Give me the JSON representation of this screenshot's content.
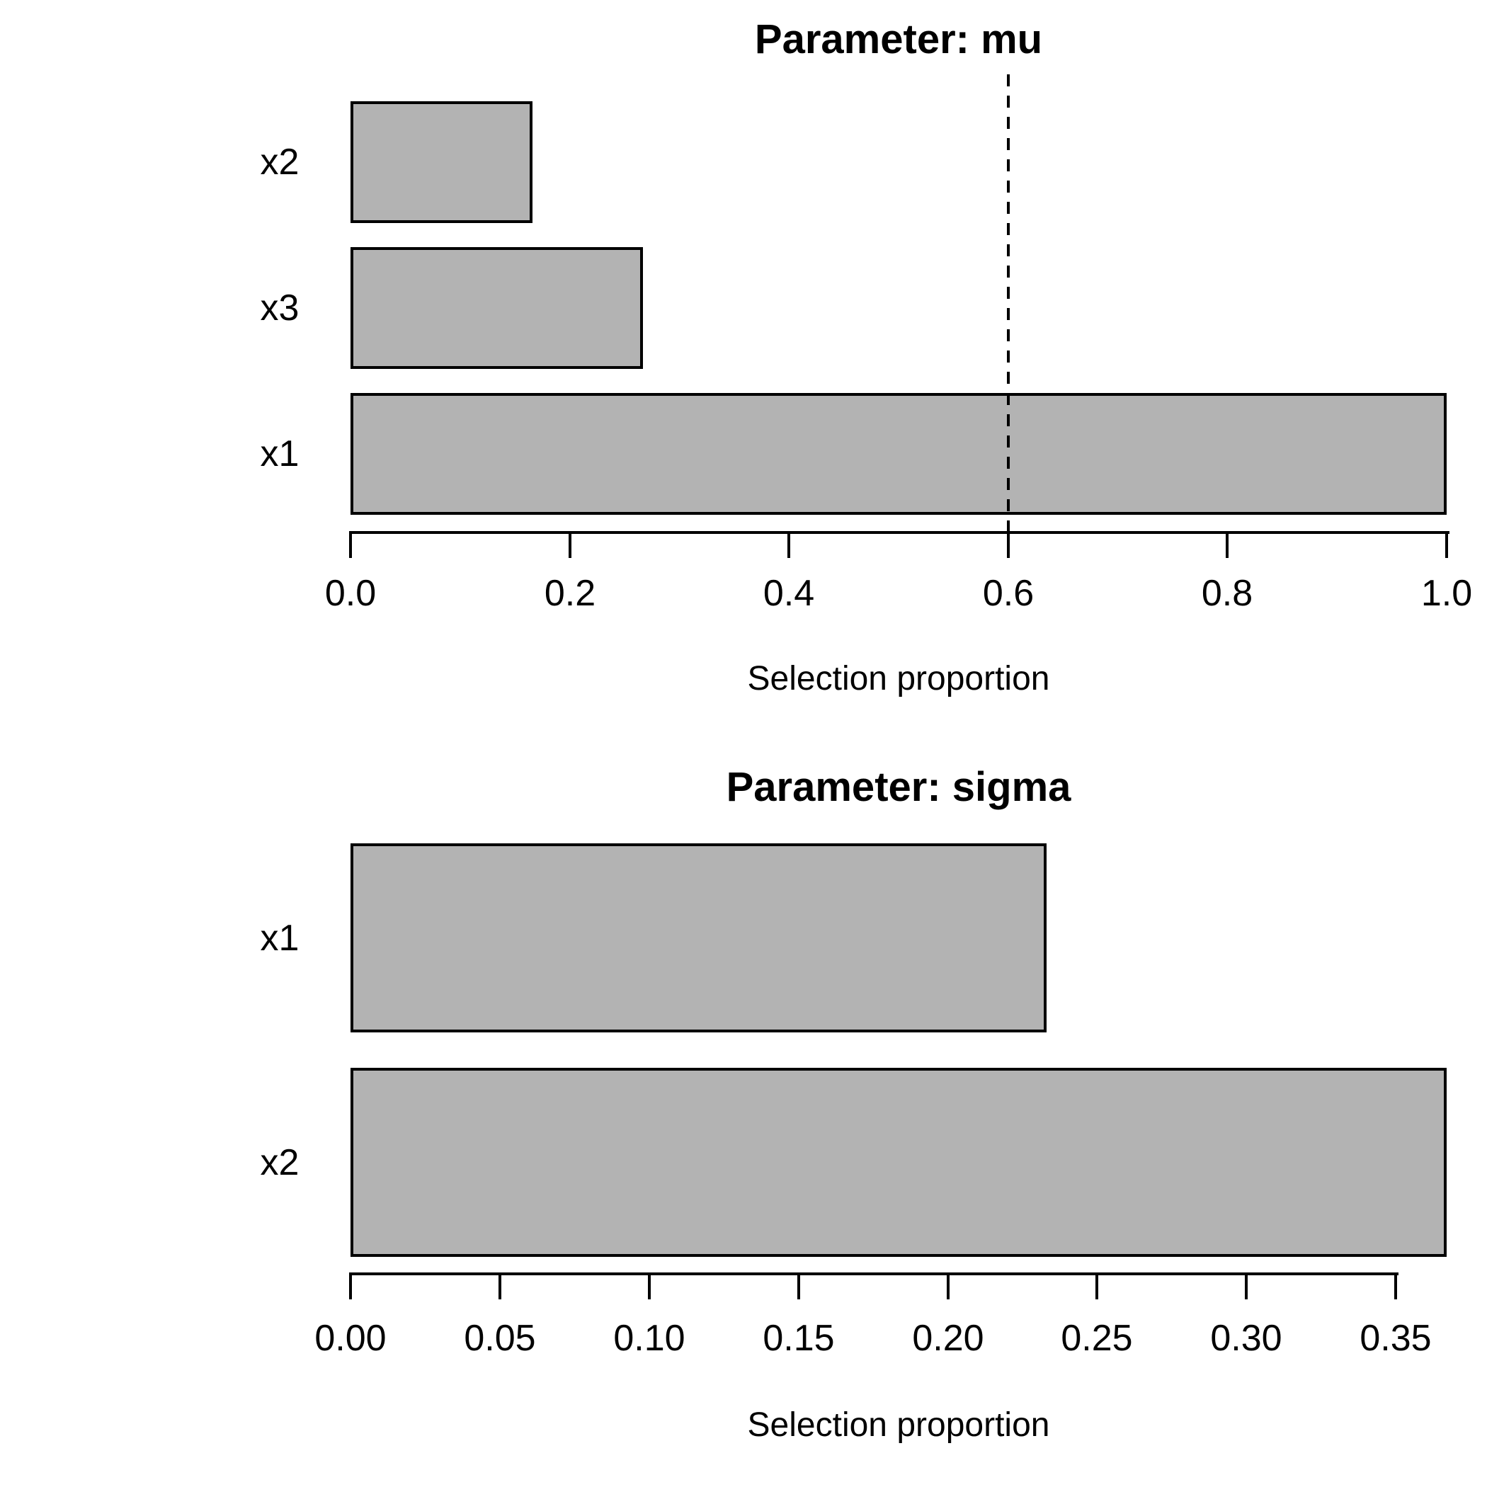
{
  "figure": {
    "background": "#ffffff",
    "text_color": "#000000"
  },
  "chart_data": [
    {
      "type": "bar",
      "orientation": "horizontal",
      "title": "Parameter: mu",
      "xlabel": "Selection proportion",
      "categories_top_to_bottom": [
        "x2",
        "x3",
        "x1"
      ],
      "values_top_to_bottom": [
        0.166,
        0.267,
        1.0
      ],
      "xlim": [
        0,
        1.0
      ],
      "xtick_values": [
        0.0,
        0.2,
        0.4,
        0.6,
        0.8,
        1.0
      ],
      "xtick_labels": [
        "0.0",
        "0.2",
        "0.4",
        "0.6",
        "0.8",
        "1.0"
      ],
      "reference_line": {
        "value": 0.6,
        "style": "dashed",
        "color": "#000000"
      },
      "bar_fill": "#b3b3b3",
      "bar_stroke": "#000000",
      "grid": false,
      "legend": null
    },
    {
      "type": "bar",
      "orientation": "horizontal",
      "title": "Parameter: sigma",
      "xlabel": "Selection proportion",
      "categories_top_to_bottom": [
        "x1",
        "x2"
      ],
      "values_top_to_bottom": [
        0.233,
        0.367
      ],
      "xlim": [
        0,
        0.367
      ],
      "xtick_values": [
        0.0,
        0.05,
        0.1,
        0.15,
        0.2,
        0.25,
        0.3,
        0.35
      ],
      "xtick_labels": [
        "0.00",
        "0.05",
        "0.10",
        "0.15",
        "0.20",
        "0.25",
        "0.30",
        "0.35"
      ],
      "reference_line": null,
      "bar_fill": "#b3b3b3",
      "bar_stroke": "#000000",
      "grid": false,
      "legend": null
    }
  ]
}
